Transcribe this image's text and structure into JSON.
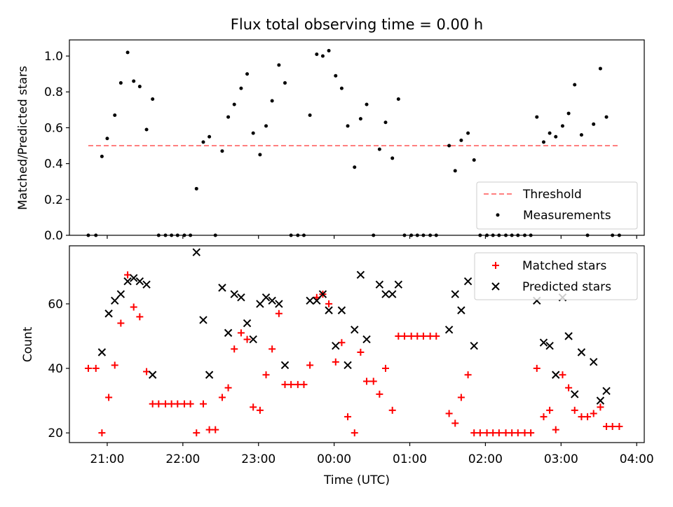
{
  "chart_data": [
    {
      "type": "scatter",
      "title": "Flux total observing time = 0.00 h",
      "xlabel": "",
      "ylabel": "Matched/Predicted stars",
      "ylim": [
        0,
        1.09
      ],
      "yticks": [
        0.0,
        0.2,
        0.4,
        0.6,
        0.8,
        1.0
      ],
      "ytick_labels": [
        "0.0",
        "0.2",
        "0.4",
        "0.6",
        "0.8",
        "1.0"
      ],
      "legend_placement": "lower-right",
      "series": [
        {
          "name": "Threshold",
          "style": "dashed-line",
          "color": "#ff7f7f",
          "x": [
            20.75,
            27.75
          ],
          "y": [
            0.5,
            0.5
          ]
        },
        {
          "name": "Measurements",
          "style": "dot",
          "color": "#000000",
          "x": [
            20.75,
            20.85,
            20.93,
            21.0,
            21.1,
            21.18,
            21.27,
            21.35,
            21.43,
            21.52,
            21.6,
            21.68,
            21.77,
            21.85,
            21.93,
            22.02,
            22.1,
            22.18,
            22.27,
            22.35,
            22.43,
            22.52,
            22.6,
            22.68,
            22.77,
            22.85,
            22.93,
            23.02,
            23.1,
            23.18,
            23.27,
            23.35,
            23.43,
            23.52,
            23.6,
            23.68,
            23.77,
            23.85,
            23.93,
            24.02,
            24.1,
            24.18,
            24.27,
            24.35,
            24.43,
            24.52,
            24.6,
            24.68,
            24.77,
            24.85,
            24.93,
            25.02,
            25.1,
            25.18,
            25.27,
            25.35,
            25.52,
            25.6,
            25.68,
            25.77,
            25.85,
            25.93,
            26.02,
            26.1,
            26.18,
            26.27,
            26.35,
            26.43,
            26.52,
            26.6,
            26.68,
            26.77,
            26.85,
            26.93,
            27.02,
            27.1,
            27.18,
            27.27,
            27.35,
            27.43,
            27.52,
            27.6,
            27.68,
            27.77
          ],
          "y": [
            0,
            0,
            0.44,
            0.54,
            0.67,
            0.85,
            1.02,
            0.86,
            0.83,
            0.59,
            0.76,
            0,
            0,
            0,
            0,
            0,
            0,
            0.26,
            0.52,
            0.55,
            0,
            0.47,
            0.66,
            0.73,
            0.82,
            0.9,
            0.57,
            0.45,
            0.61,
            0.75,
            0.95,
            0.85,
            0,
            0,
            0,
            0.67,
            1.01,
            1.0,
            1.03,
            0.89,
            0.82,
            0.61,
            0.38,
            0.65,
            0.73,
            0,
            0.48,
            0.63,
            0.43,
            0.76,
            0,
            0,
            0,
            0,
            0,
            0,
            0.5,
            0.36,
            0.53,
            0.57,
            0.42,
            0,
            0,
            0,
            0,
            0,
            0,
            0,
            0,
            0,
            0.66,
            0.52,
            0.57,
            0.55,
            0.61,
            0.68,
            0.84,
            0.56,
            0,
            0.62,
            0.93,
            0.66,
            0,
            0
          ]
        }
      ]
    },
    {
      "type": "scatter",
      "title": "",
      "xlabel": "Time (UTC)",
      "ylabel": "Count",
      "xlim": [
        20.5,
        28.1
      ],
      "ylim": [
        17,
        78
      ],
      "xticks": [
        21,
        22,
        23,
        24,
        25,
        26,
        27,
        28
      ],
      "xtick_labels": [
        "21:00",
        "22:00",
        "23:00",
        "00:00",
        "01:00",
        "02:00",
        "03:00",
        "04:00"
      ],
      "yticks": [
        20,
        40,
        60
      ],
      "ytick_labels": [
        "20",
        "40",
        "60"
      ],
      "legend_placement": "upper-right",
      "series": [
        {
          "name": "Matched stars",
          "marker": "plus",
          "color": "#ff0000",
          "x": [
            20.75,
            20.85,
            20.93,
            21.02,
            21.1,
            21.18,
            21.27,
            21.35,
            21.43,
            21.52,
            21.6,
            21.68,
            21.77,
            21.85,
            21.93,
            22.02,
            22.1,
            22.18,
            22.27,
            22.35,
            22.43,
            22.52,
            22.6,
            22.68,
            22.77,
            22.85,
            22.93,
            23.02,
            23.1,
            23.18,
            23.27,
            23.35,
            23.43,
            23.52,
            23.6,
            23.68,
            23.77,
            23.85,
            23.93,
            24.02,
            24.1,
            24.18,
            24.27,
            24.35,
            24.43,
            24.52,
            24.6,
            24.68,
            24.77,
            24.85,
            24.93,
            25.02,
            25.1,
            25.18,
            25.27,
            25.35,
            25.52,
            25.6,
            25.68,
            25.77,
            25.85,
            25.93,
            26.02,
            26.1,
            26.18,
            26.27,
            26.35,
            26.43,
            26.52,
            26.6,
            26.68,
            26.77,
            26.85,
            26.93,
            27.02,
            27.1,
            27.18,
            27.27,
            27.35,
            27.43,
            27.52,
            27.6,
            27.68,
            27.77
          ],
          "y": [
            40,
            40,
            20,
            31,
            41,
            54,
            69,
            59,
            56,
            39,
            29,
            29,
            29,
            29,
            29,
            29,
            29,
            20,
            29,
            21,
            21,
            31,
            34,
            46,
            51,
            49,
            28,
            27,
            38,
            46,
            57,
            35,
            35,
            35,
            35,
            41,
            62,
            63,
            60,
            42,
            48,
            25,
            20,
            45,
            36,
            36,
            32,
            40,
            27,
            50,
            50,
            50,
            50,
            50,
            50,
            50,
            26,
            23,
            31,
            38,
            20,
            20,
            20,
            20,
            20,
            20,
            20,
            20,
            20,
            20,
            40,
            25,
            27,
            21,
            38,
            34,
            27,
            25,
            25,
            26,
            28,
            22,
            22,
            22
          ]
        },
        {
          "name": "Predicted stars",
          "marker": "x",
          "color": "#000000",
          "x": [
            20.93,
            21.02,
            21.1,
            21.18,
            21.27,
            21.35,
            21.43,
            21.52,
            21.6,
            22.18,
            22.27,
            22.35,
            22.52,
            22.6,
            22.68,
            22.77,
            22.85,
            22.93,
            23.02,
            23.1,
            23.18,
            23.27,
            23.35,
            23.68,
            23.77,
            23.85,
            23.93,
            24.02,
            24.1,
            24.18,
            24.27,
            24.35,
            24.43,
            24.6,
            24.68,
            24.77,
            24.85,
            25.52,
            25.6,
            25.68,
            25.77,
            25.85,
            26.68,
            26.77,
            26.85,
            26.93,
            27.02,
            27.1,
            27.18,
            27.27,
            27.43,
            27.52,
            27.6
          ],
          "y": [
            45,
            57,
            61,
            63,
            67,
            68,
            67,
            66,
            38,
            76,
            55,
            38,
            65,
            51,
            63,
            62,
            54,
            49,
            60,
            62,
            61,
            60,
            41,
            61,
            61,
            63,
            58,
            47,
            58,
            41,
            52,
            69,
            49,
            66,
            63,
            63,
            66,
            52,
            63,
            58,
            67,
            47,
            61,
            48,
            47,
            38,
            62,
            50,
            32,
            45,
            42,
            30,
            33
          ]
        }
      ]
    }
  ]
}
